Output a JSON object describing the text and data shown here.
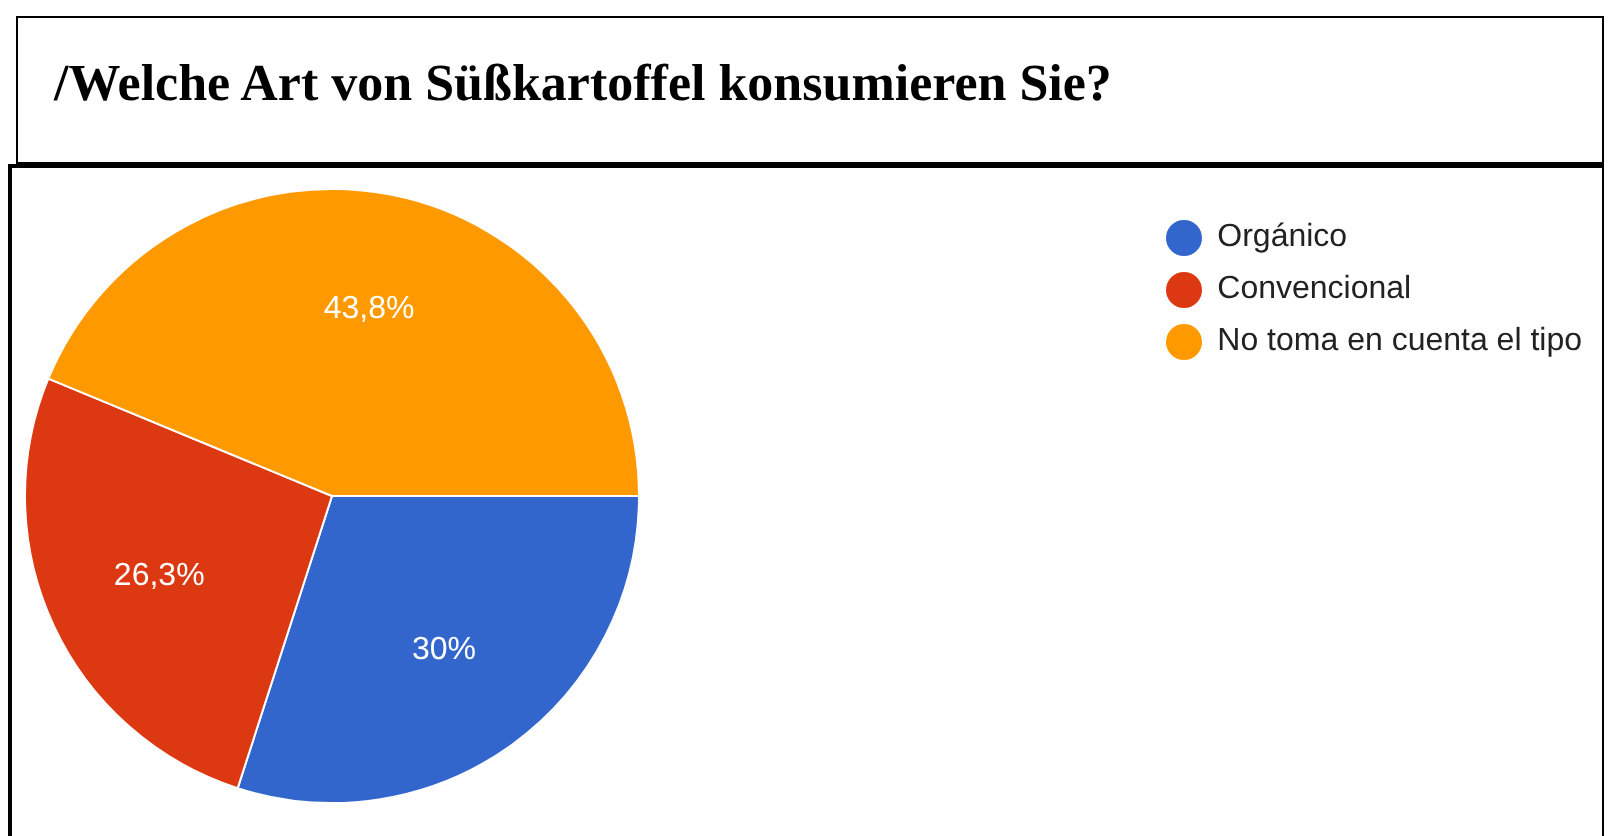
{
  "chart_data": {
    "type": "pie",
    "title": "/Welche Art von Süßkartoffel konsumieren Sie?",
    "categories": [
      "Orgánico",
      "Convencional",
      "No toma en cuenta el tipo"
    ],
    "values": [
      30,
      26.3,
      43.8
    ],
    "value_labels": [
      "30%",
      "26,3%",
      "43,8%"
    ],
    "colors": [
      "#3366cc",
      "#dc3912",
      "#ff9900"
    ],
    "legend": "top right"
  }
}
